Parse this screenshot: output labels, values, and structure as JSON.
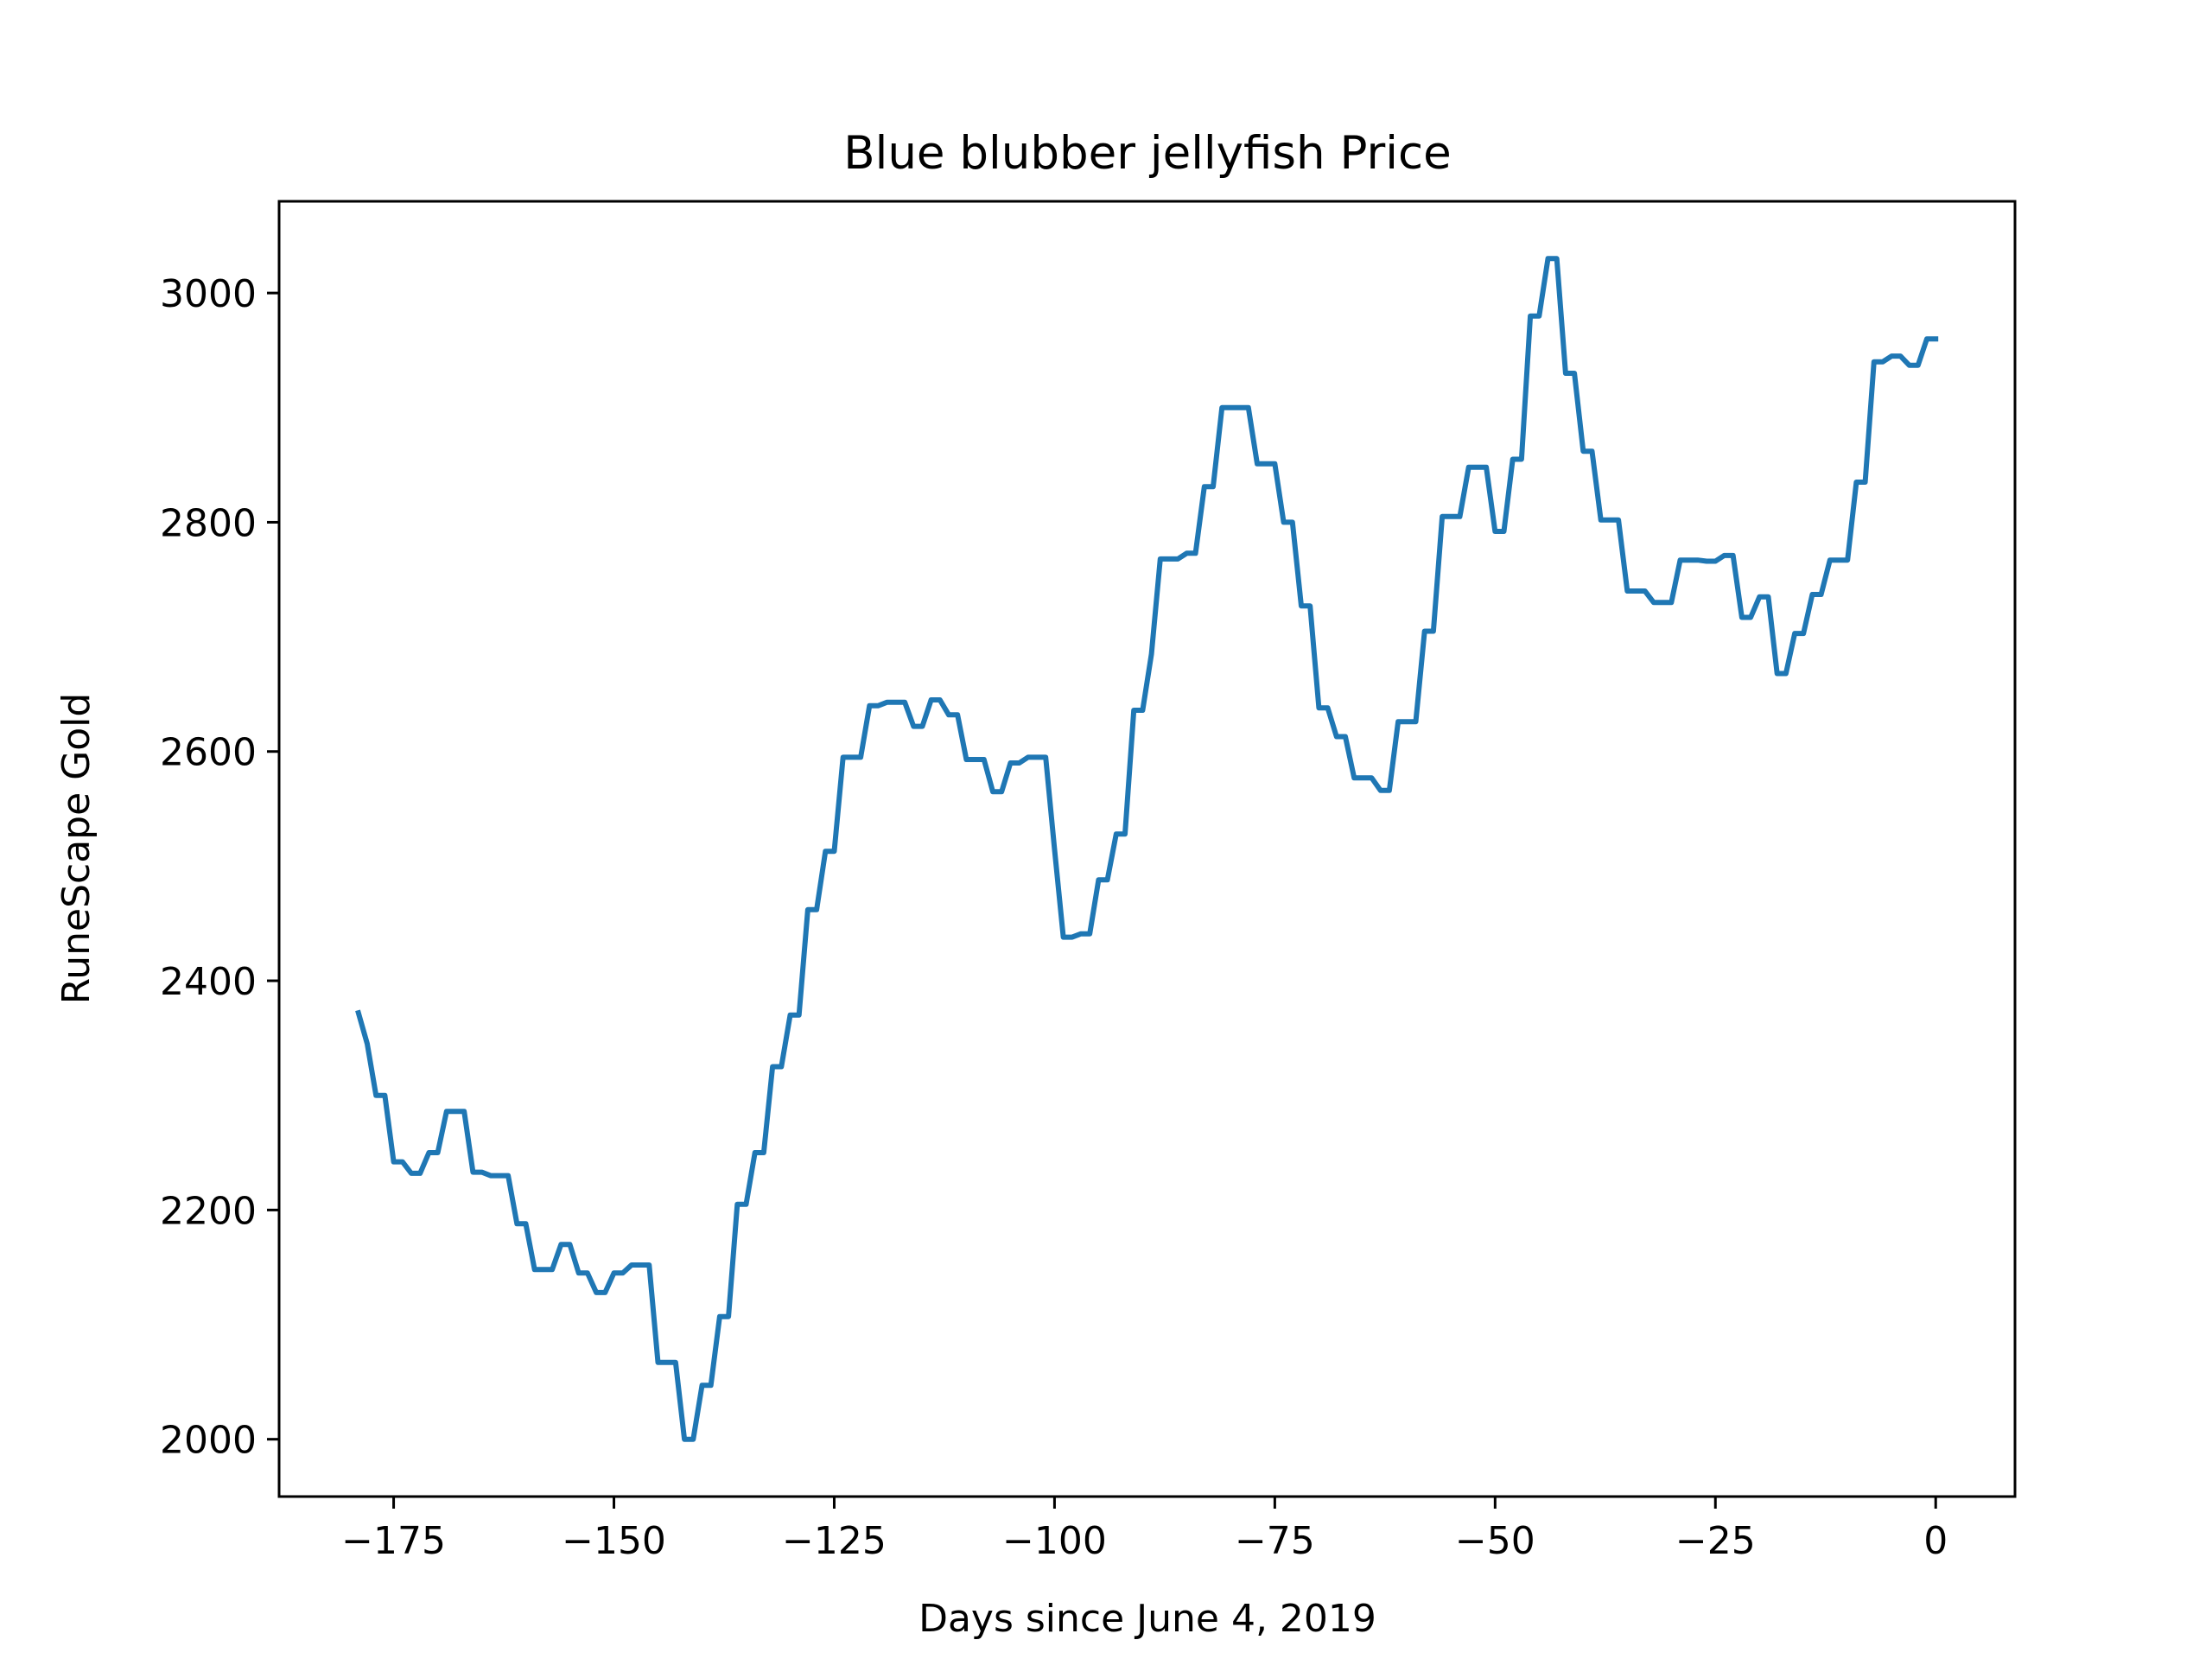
{
  "chart_data": {
    "type": "line",
    "title": "Blue blubber jellyfish Price",
    "xlabel": "Days since June 4, 2019",
    "ylabel": "RuneScape Gold",
    "xlim": [
      -188,
      9
    ],
    "ylim": [
      1950,
      3080
    ],
    "xticks": [
      -175,
      -150,
      -125,
      -100,
      -75,
      -50,
      -25,
      0
    ],
    "xtick_labels": [
      "−175",
      "−150",
      "−125",
      "−100",
      "−75",
      "−50",
      "−25",
      "0"
    ],
    "yticks": [
      2000,
      2200,
      2400,
      2600,
      2800,
      3000
    ],
    "ytick_labels": [
      "2000",
      "2200",
      "2400",
      "2600",
      "2800",
      "3000"
    ],
    "grid": false,
    "legend": "none",
    "series": [
      {
        "color": "#1f77b4",
        "x": [
          -179,
          -178,
          -177,
          -176,
          -175,
          -174,
          -173,
          -172,
          -171,
          -170,
          -169,
          -168,
          -167,
          -166,
          -165,
          -164,
          -163,
          -162,
          -161,
          -160,
          -159,
          -158,
          -157,
          -156,
          -155,
          -154,
          -153,
          -152,
          -151,
          -150,
          -149,
          -148,
          -147,
          -146,
          -145,
          -144,
          -143,
          -142,
          -141,
          -140,
          -139,
          -138,
          -137,
          -136,
          -135,
          -134,
          -133,
          -132,
          -131,
          -130,
          -129,
          -128,
          -127,
          -126,
          -125,
          -124,
          -123,
          -122,
          -121,
          -120,
          -119,
          -118,
          -117,
          -116,
          -115,
          -114,
          -113,
          -112,
          -111,
          -110,
          -109,
          -108,
          -107,
          -106,
          -105,
          -104,
          -103,
          -102,
          -101,
          -100,
          -99,
          -98,
          -97,
          -96,
          -95,
          -94,
          -93,
          -92,
          -91,
          -90,
          -89,
          -88,
          -87,
          -86,
          -85,
          -84,
          -83,
          -82,
          -81,
          -80,
          -79,
          -78,
          -77,
          -76,
          -75,
          -74,
          -73,
          -72,
          -71,
          -70,
          -69,
          -68,
          -67,
          -66,
          -65,
          -64,
          -63,
          -62,
          -61,
          -60,
          -59,
          -58,
          -57,
          -56,
          -55,
          -54,
          -53,
          -52,
          -51,
          -50,
          -49,
          -48,
          -47,
          -46,
          -45,
          -44,
          -43,
          -42,
          -41,
          -40,
          -39,
          -38,
          -37,
          -36,
          -35,
          -34,
          -33,
          -32,
          -31,
          -30,
          -29,
          -28,
          -27,
          -26,
          -25,
          -24,
          -23,
          -22,
          -21,
          -20,
          -19,
          -18,
          -17,
          -16,
          -15,
          -14,
          -13,
          -12,
          -11,
          -10,
          -9,
          -8,
          -7,
          -6,
          -5,
          -4,
          -3,
          -2,
          -1,
          0
        ],
        "y": [
          2372,
          2345,
          2300,
          2300,
          2242,
          2242,
          2232,
          2232,
          2250,
          2250,
          2286,
          2286,
          2286,
          2233,
          2233,
          2230,
          2230,
          2230,
          2188,
          2188,
          2148,
          2148,
          2148,
          2170,
          2170,
          2145,
          2145,
          2128,
          2128,
          2145,
          2145,
          2152,
          2152,
          2152,
          2067,
          2067,
          2067,
          2000,
          2000,
          2047,
          2047,
          2107,
          2107,
          2205,
          2205,
          2250,
          2250,
          2325,
          2325,
          2370,
          2370,
          2462,
          2462,
          2513,
          2513,
          2595,
          2595,
          2595,
          2640,
          2640,
          2643,
          2643,
          2643,
          2622,
          2622,
          2645,
          2645,
          2632,
          2632,
          2593,
          2593,
          2593,
          2565,
          2565,
          2590,
          2590,
          2595,
          2595,
          2595,
          2515,
          2438,
          2438,
          2441,
          2441,
          2488,
          2488,
          2528,
          2528,
          2636,
          2636,
          2685,
          2768,
          2768,
          2768,
          2773,
          2773,
          2831,
          2831,
          2900,
          2900,
          2900,
          2900,
          2851,
          2851,
          2851,
          2800,
          2800,
          2727,
          2727,
          2638,
          2638,
          2613,
          2613,
          2577,
          2577,
          2577,
          2566,
          2566,
          2626,
          2626,
          2626,
          2705,
          2705,
          2805,
          2805,
          2805,
          2848,
          2848,
          2848,
          2792,
          2792,
          2855,
          2855,
          2980,
          2980,
          3030,
          3030,
          2930,
          2930,
          2862,
          2862,
          2802,
          2802,
          2802,
          2740,
          2740,
          2740,
          2730,
          2730,
          2730,
          2767,
          2767,
          2767,
          2766,
          2766,
          2771,
          2771,
          2717,
          2717,
          2735,
          2735,
          2668,
          2668,
          2703,
          2703,
          2737,
          2737,
          2767,
          2767,
          2767,
          2835,
          2835,
          2940,
          2940,
          2945,
          2945,
          2937,
          2937,
          2960,
          2960
        ]
      }
    ]
  }
}
